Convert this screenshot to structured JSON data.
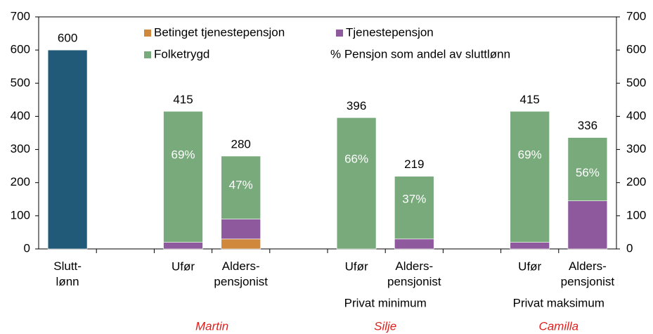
{
  "chart_data": {
    "type": "stacked_bar",
    "categories": [
      "Slutt-\nlønn",
      null,
      "Ufør",
      "Alders-\npensjonist",
      null,
      "Ufør",
      "Alders-\npensjonist",
      null,
      "Ufør",
      "Alders-\npensjonist"
    ],
    "series": [
      {
        "color": "#215a78",
        "values": [
          600,
          null,
          null,
          null,
          null,
          null,
          null,
          null,
          null,
          null
        ]
      },
      {
        "name": "Betinget tjenestepensjon",
        "color": "#d0893c",
        "values": [
          null,
          null,
          null,
          30,
          null,
          null,
          null,
          null,
          null,
          null
        ]
      },
      {
        "name": "Tjenestepensjon",
        "color": "#8f5a9d",
        "values": [
          null,
          null,
          20,
          60,
          null,
          null,
          30,
          null,
          20,
          145
        ]
      },
      {
        "name": "Folketrygd",
        "color": "#78aa7b",
        "values": [
          null,
          null,
          395,
          190,
          null,
          396,
          189,
          null,
          395,
          191
        ]
      }
    ],
    "totals": [
      600,
      null,
      415,
      280,
      null,
      396,
      219,
      null,
      415,
      336
    ],
    "share_labels": [
      null,
      null,
      "69%",
      "47%",
      null,
      "66%",
      "37%",
      null,
      "69%",
      "56%"
    ],
    "legend_note": "% Pensjon som andel av sluttlønn",
    "groups": [
      {
        "name": "Martin"
      },
      {
        "name": "Silje",
        "label": "Privat minimum"
      },
      {
        "name": "Camilla",
        "label": "Privat maksimum"
      }
    ],
    "ylim": [
      0,
      700
    ],
    "yticks": [
      0,
      100,
      200,
      300,
      400,
      500,
      600,
      700
    ],
    "y2lim": [
      0,
      700
    ],
    "y2ticks": [
      0,
      100,
      200,
      300,
      400,
      500,
      600,
      700
    ],
    "grid": false
  }
}
